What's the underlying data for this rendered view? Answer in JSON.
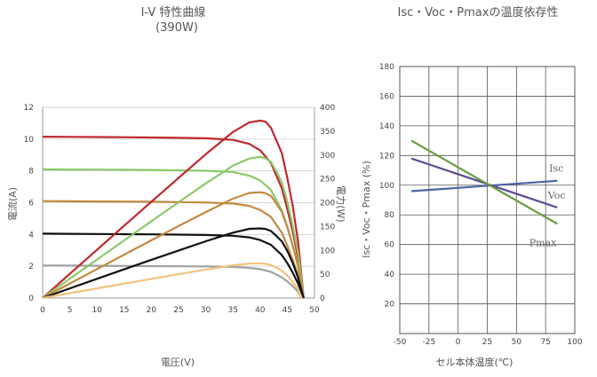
{
  "chart_data": [
    {
      "type": "line",
      "title": "I-V 特性曲線",
      "subtitle": "(390W)",
      "xlabel": "電圧(V)",
      "ylabel": "電流(A)",
      "y2label": "電力(W)",
      "xlim": [
        0,
        50
      ],
      "ylim": [
        0,
        12
      ],
      "y2lim": [
        0,
        400
      ],
      "xticks": [
        "0",
        "5",
        "10",
        "15",
        "20",
        "25",
        "30",
        "35",
        "40",
        "45",
        "50"
      ],
      "yticks": [
        "0",
        "2",
        "4",
        "6",
        "8",
        "10",
        "12"
      ],
      "y2ticks": [
        "0",
        "50",
        "100",
        "150",
        "200",
        "250",
        "300",
        "350",
        "400"
      ],
      "grid": true,
      "series": [
        {
          "axis": "left",
          "color": "#c0272d",
          "x": [
            0,
            5,
            10,
            15,
            20,
            25,
            30,
            35,
            38,
            40,
            42,
            44,
            45,
            46,
            47,
            47.5,
            48
          ],
          "y": [
            10.15,
            10.14,
            10.13,
            10.12,
            10.1,
            10.08,
            10.05,
            9.95,
            9.7,
            9.3,
            8.5,
            6.9,
            5.6,
            4.2,
            2.5,
            1.3,
            0
          ]
        },
        {
          "axis": "left",
          "color": "#8cc96a",
          "x": [
            0,
            5,
            10,
            15,
            20,
            25,
            30,
            35,
            38,
            40,
            42,
            44,
            45,
            46,
            47,
            47.5,
            48
          ],
          "y": [
            8.1,
            8.09,
            8.08,
            8.07,
            8.06,
            8.04,
            8.01,
            7.93,
            7.7,
            7.4,
            6.8,
            5.5,
            4.5,
            3.3,
            2.0,
            1.0,
            0
          ]
        },
        {
          "axis": "left",
          "color": "#c28a3f",
          "x": [
            0,
            5,
            10,
            15,
            20,
            25,
            30,
            35,
            38,
            40,
            42,
            44,
            45,
            46,
            47,
            47.5,
            48
          ],
          "y": [
            6.1,
            6.09,
            6.08,
            6.07,
            6.06,
            6.04,
            6.01,
            5.95,
            5.8,
            5.55,
            5.1,
            4.1,
            3.3,
            2.4,
            1.4,
            0.7,
            0
          ]
        },
        {
          "axis": "left",
          "color": "#111111",
          "x": [
            0,
            5,
            10,
            15,
            20,
            25,
            30,
            35,
            38,
            40,
            42,
            44,
            45,
            46,
            47,
            47.5,
            48
          ],
          "y": [
            4.05,
            4.04,
            4.03,
            4.02,
            4.01,
            3.99,
            3.97,
            3.92,
            3.82,
            3.65,
            3.35,
            2.7,
            2.2,
            1.6,
            0.9,
            0.45,
            0
          ]
        },
        {
          "axis": "left",
          "color": "#a0a0a0",
          "x": [
            0,
            5,
            10,
            15,
            20,
            25,
            30,
            35,
            38,
            40,
            42,
            44,
            45,
            46,
            47,
            47.5
          ],
          "y": [
            2.05,
            2.04,
            2.03,
            2.02,
            2.01,
            2.0,
            1.99,
            1.96,
            1.9,
            1.82,
            1.65,
            1.3,
            1.05,
            0.75,
            0.4,
            0
          ]
        },
        {
          "axis": "right",
          "color": "#c0272d",
          "x": [
            0,
            5,
            10,
            15,
            20,
            25,
            30,
            35,
            38,
            40,
            41,
            42,
            43,
            44,
            45,
            46,
            47,
            48
          ],
          "y": [
            0,
            50.7,
            101.3,
            151.8,
            202,
            252,
            301.5,
            348.3,
            368.6,
            372,
            370,
            357,
            330,
            303.6,
            252,
            193.2,
            117.5,
            0
          ]
        },
        {
          "axis": "right",
          "color": "#8cc96a",
          "x": [
            0,
            5,
            10,
            15,
            20,
            25,
            30,
            35,
            38,
            40,
            41,
            42,
            43,
            44,
            45,
            46,
            47,
            48
          ],
          "y": [
            0,
            40.5,
            80.8,
            121,
            161.2,
            201,
            240.3,
            277.6,
            292.6,
            296,
            293,
            285.6,
            265,
            242,
            202.5,
            151.8,
            94,
            0
          ]
        },
        {
          "axis": "right",
          "color": "#c28a3f",
          "x": [
            0,
            5,
            10,
            15,
            20,
            25,
            30,
            35,
            38,
            40,
            41,
            42,
            43,
            44,
            45,
            46,
            47,
            48
          ],
          "y": [
            0,
            30.5,
            60.8,
            91,
            121.2,
            151,
            180.3,
            208.3,
            220.4,
            222,
            220,
            214.2,
            198,
            180.4,
            148.5,
            110.4,
            65.8,
            0
          ]
        },
        {
          "axis": "right",
          "color": "#111111",
          "x": [
            0,
            5,
            10,
            15,
            20,
            25,
            30,
            35,
            38,
            40,
            41,
            42,
            43,
            44,
            45,
            46,
            47,
            48
          ],
          "y": [
            0,
            20.2,
            40.3,
            60.3,
            80.2,
            99.8,
            119.1,
            137.2,
            145.2,
            146,
            145,
            140.7,
            130,
            118.8,
            99,
            73.6,
            42.3,
            0
          ]
        },
        {
          "axis": "right",
          "color": "#f2c17e",
          "x": [
            0,
            5,
            10,
            15,
            20,
            25,
            30,
            35,
            38,
            40,
            41,
            42,
            43,
            44,
            45,
            46,
            47,
            47.5
          ],
          "y": [
            0,
            10.2,
            20.3,
            30.3,
            40.2,
            50,
            59.7,
            68.6,
            72.2,
            72.8,
            72,
            69.3,
            64,
            57.2,
            47.3,
            34.5,
            18.8,
            0
          ]
        }
      ]
    },
    {
      "type": "line",
      "title": "Isc・Voc・Pmaxの温度依存性",
      "xlabel": "セル本体温度(℃)",
      "ylabel": "Isc・Voc・Pmax (%)",
      "xlim": [
        -50,
        100
      ],
      "ylim": [
        0,
        180
      ],
      "xticks": [
        "-50",
        "-25",
        "0",
        "25",
        "50",
        "75",
        "100"
      ],
      "yticks": [
        "20",
        "40",
        "60",
        "80",
        "100",
        "120",
        "140",
        "160",
        "180"
      ],
      "grid": true,
      "series": [
        {
          "name": "Isc",
          "color": "#4a62a6",
          "x": [
            -40,
            85
          ],
          "y": [
            96,
            103
          ]
        },
        {
          "name": "Voc",
          "color": "#5b4d93",
          "x": [
            -40,
            85
          ],
          "y": [
            118,
            85
          ]
        },
        {
          "name": "Pmax",
          "color": "#6b9a3e",
          "x": [
            -40,
            85
          ],
          "y": [
            130,
            74
          ]
        }
      ]
    }
  ]
}
